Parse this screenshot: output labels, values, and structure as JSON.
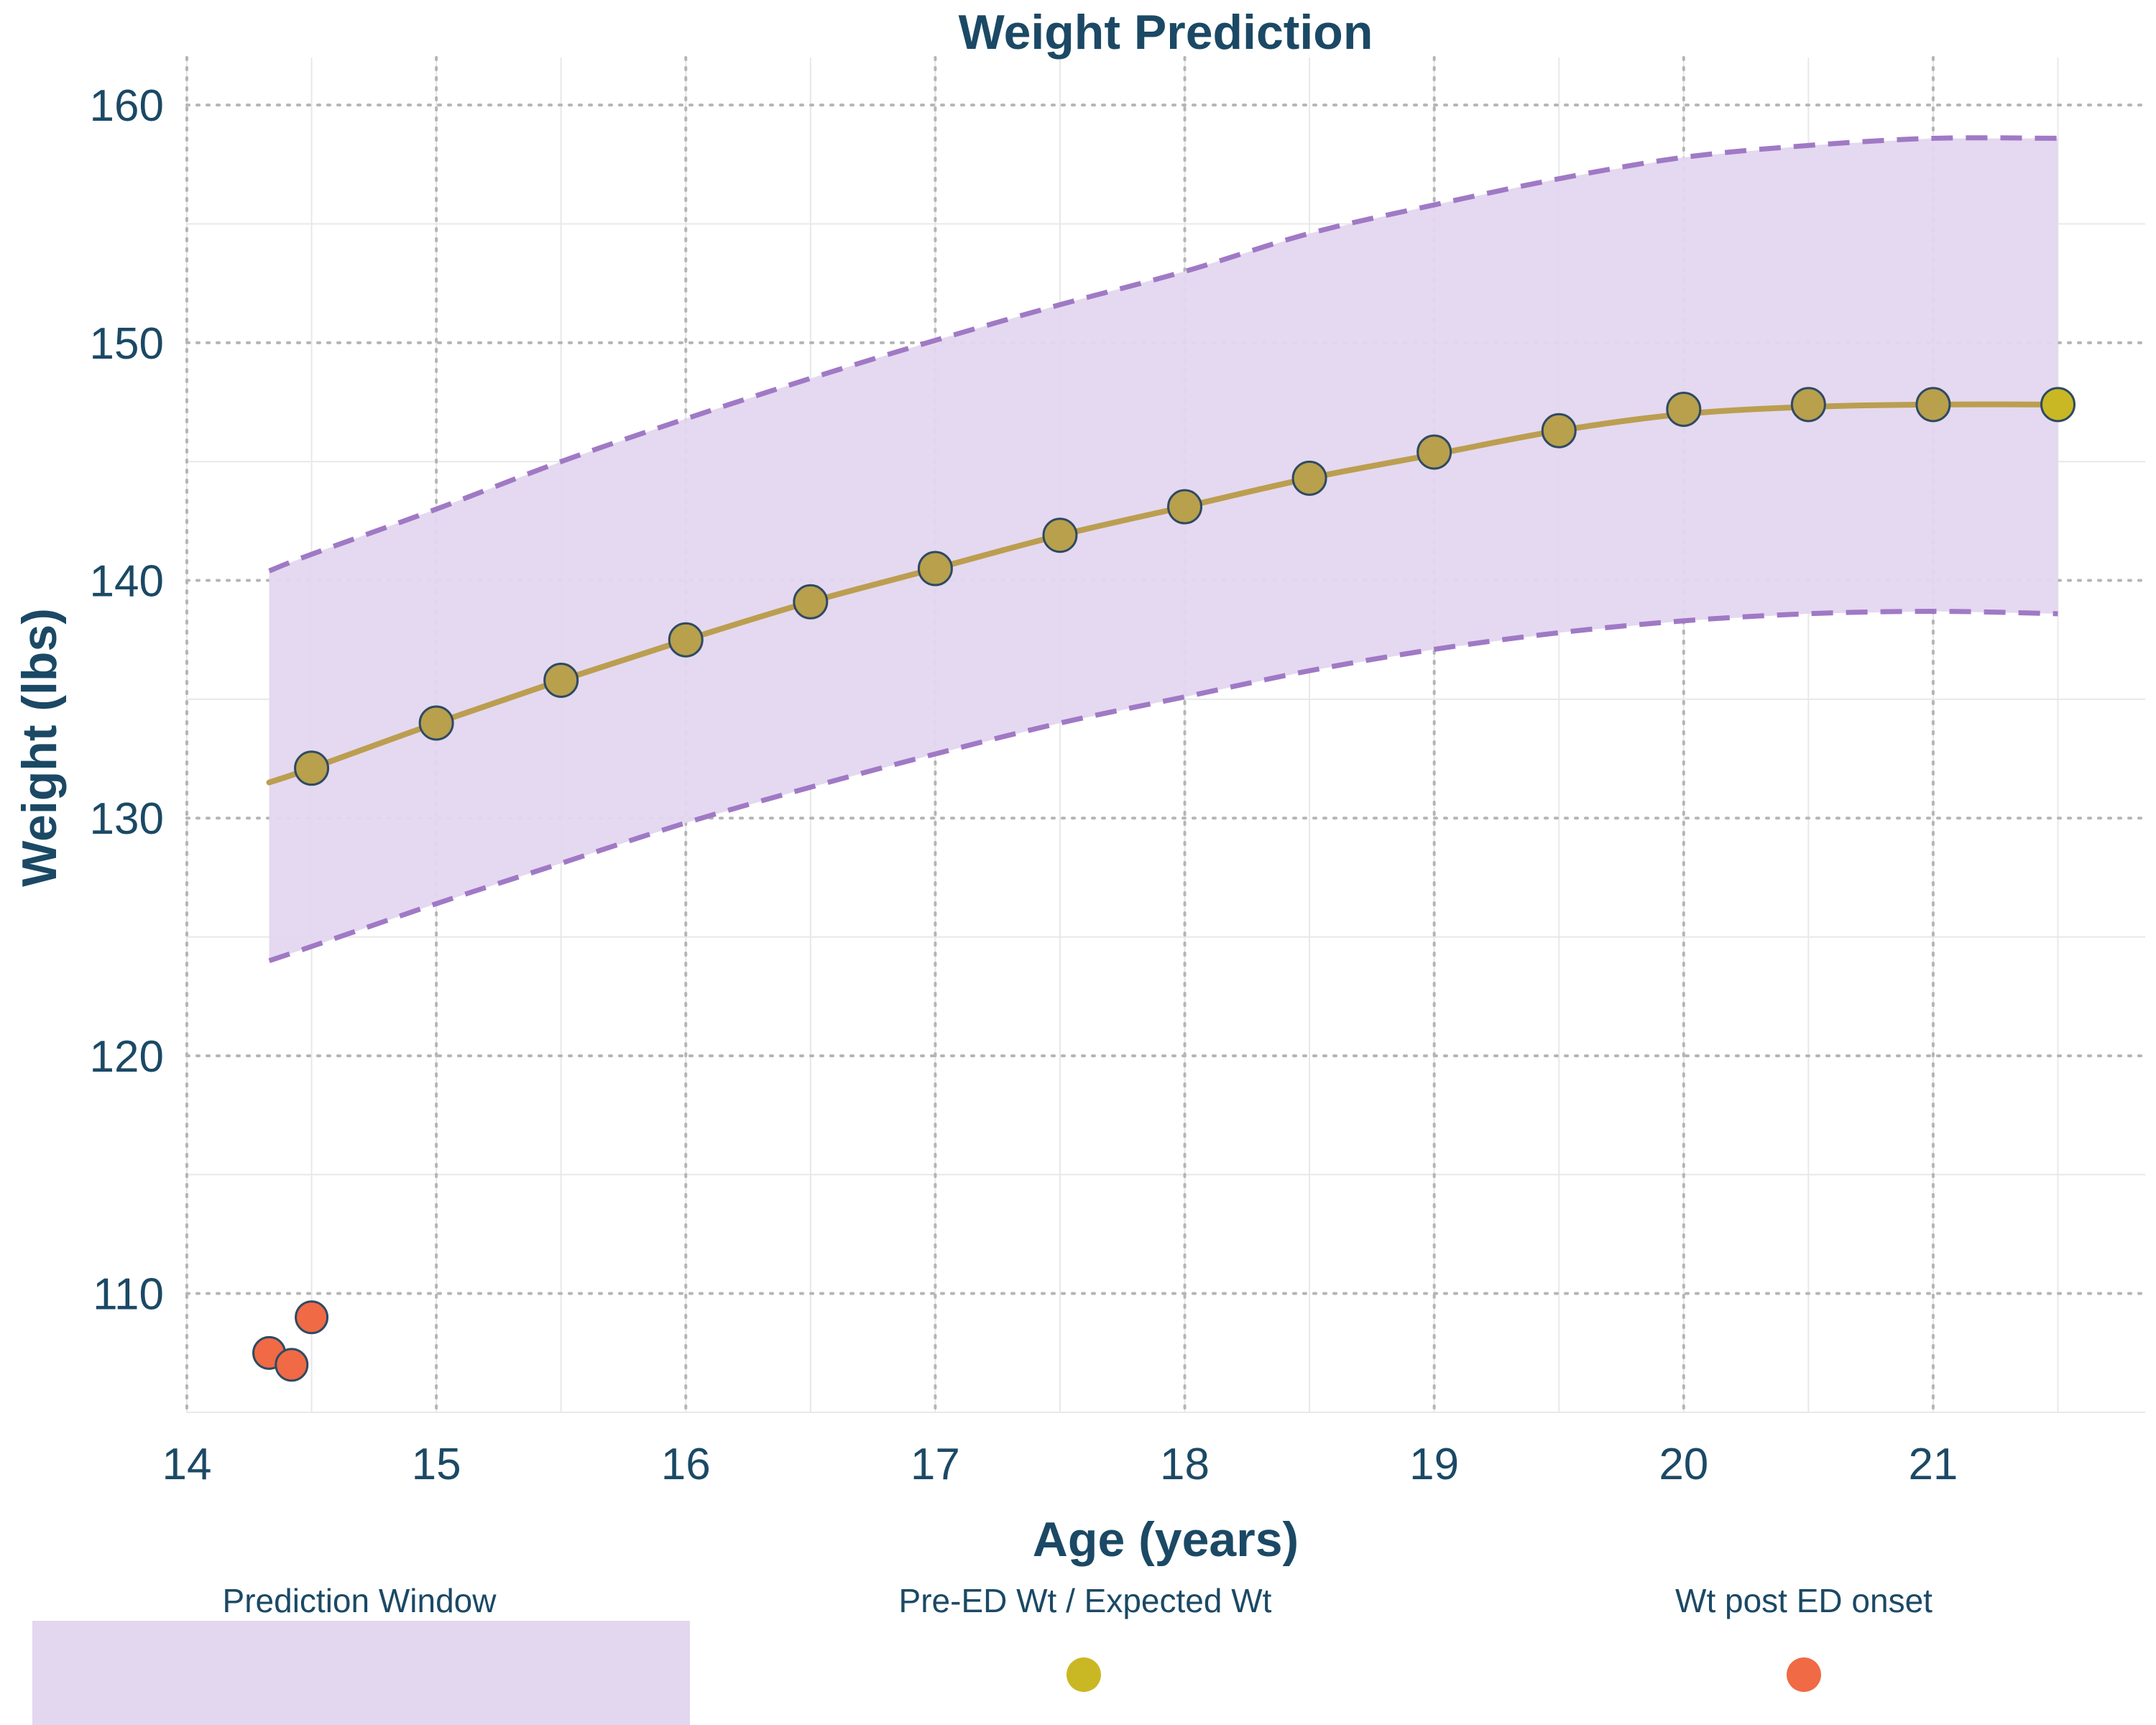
{
  "chart_data": {
    "type": "line",
    "title": "Weight Prediction",
    "xlabel": "Age (years)",
    "ylabel": "Weight (lbs)",
    "xlim": [
      14,
      21.85
    ],
    "ylim": [
      105,
      162
    ],
    "x_ticks": [
      14,
      15,
      16,
      17,
      18,
      19,
      20,
      21
    ],
    "y_ticks": [
      110,
      120,
      130,
      140,
      150,
      160
    ],
    "grid": true,
    "legend_position": "bottom",
    "colors": {
      "text": "#1b4965",
      "band_fill": "#e3d7ef",
      "band_edge": "#a079c5",
      "expected_line": "#bb9e50",
      "expected_marker": "#b8a04c",
      "latest_marker": "#c9b824",
      "post_onset_marker": "#ef6a45",
      "marker_edge": "#2f4a63",
      "grid_dotted": "#b5b5b5",
      "grid_light": "#e8e8e8"
    },
    "series": [
      {
        "name": "Prediction Window",
        "kind": "band",
        "x": [
          14.33,
          14.5,
          15,
          15.5,
          16,
          16.5,
          17,
          17.5,
          18,
          18.5,
          19,
          19.5,
          20,
          20.5,
          21,
          21.5
        ],
        "upper": [
          140.4,
          141.1,
          143.0,
          145.0,
          146.8,
          148.5,
          150.1,
          151.6,
          153.0,
          154.6,
          155.8,
          156.9,
          157.8,
          158.3,
          158.6,
          158.6
        ],
        "lower": [
          124.0,
          124.6,
          126.4,
          128.1,
          129.8,
          131.3,
          132.7,
          134.0,
          135.1,
          136.2,
          137.1,
          137.8,
          138.3,
          138.6,
          138.7,
          138.6
        ]
      },
      {
        "name": "Pre-ED Wt / Expected Wt",
        "kind": "line+markers",
        "line_x": [
          14.33,
          14.5,
          15,
          15.5,
          16,
          16.5,
          17,
          17.5,
          18,
          18.5,
          19,
          19.5,
          20,
          20.5,
          21,
          21.5
        ],
        "line_y": [
          131.5,
          132.1,
          134.0,
          135.8,
          137.5,
          139.1,
          140.5,
          141.9,
          143.1,
          144.3,
          145.3,
          146.3,
          147.0,
          147.3,
          147.4,
          147.4
        ],
        "x": [
          14.5,
          15,
          15.5,
          16,
          16.5,
          17,
          17.5,
          18,
          18.5,
          19,
          19.5,
          20,
          20.5,
          21,
          21.5
        ],
        "y": [
          132.1,
          134.0,
          135.8,
          137.5,
          139.1,
          140.5,
          141.9,
          143.1,
          144.3,
          145.4,
          146.3,
          147.2,
          147.4,
          147.4,
          147.4
        ]
      },
      {
        "name": "Wt post ED onset",
        "kind": "markers",
        "x": [
          14.33,
          14.42,
          14.5
        ],
        "y": [
          107.5,
          107.0,
          109.0
        ]
      }
    ]
  }
}
